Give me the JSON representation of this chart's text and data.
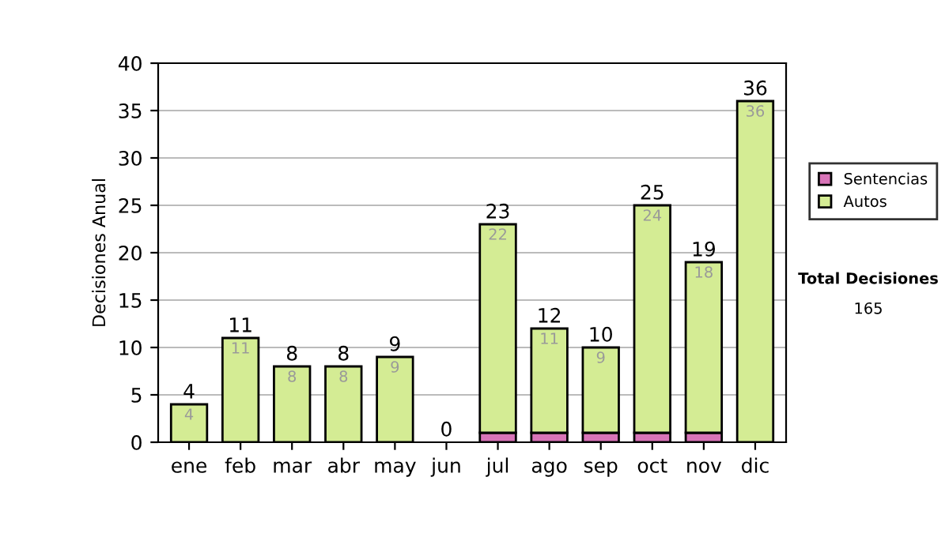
{
  "chart_data": {
    "type": "bar",
    "stacked": true,
    "ylabel": "Decisiones Anual",
    "categories": [
      "ene",
      "feb",
      "mar",
      "abr",
      "may",
      "jun",
      "jul",
      "ago",
      "sep",
      "oct",
      "nov",
      "dic"
    ],
    "series": [
      {
        "name": "Sentencias",
        "color": "#d874b8",
        "values": [
          0,
          0,
          0,
          0,
          0,
          0,
          1,
          1,
          1,
          1,
          1,
          0
        ]
      },
      {
        "name": "Autos",
        "color": "#d4ec94",
        "values": [
          4,
          11,
          8,
          8,
          9,
          0,
          22,
          11,
          9,
          24,
          18,
          36
        ],
        "value_labels": [
          "4",
          "11",
          "8",
          "8",
          "9",
          null,
          "22",
          "11",
          "9",
          "24",
          "18",
          "36"
        ]
      }
    ],
    "totals": [
      "4",
      "11",
      "8",
      "8",
      "9",
      "0",
      "23",
      "12",
      "10",
      "25",
      "19",
      "36"
    ],
    "ylim": [
      0,
      40
    ],
    "yticks": [
      0,
      5,
      10,
      15,
      20,
      25,
      30,
      35,
      40
    ],
    "grid": "y",
    "legend": "right",
    "annotations": [
      "Total Decisiones",
      "165"
    ]
  }
}
